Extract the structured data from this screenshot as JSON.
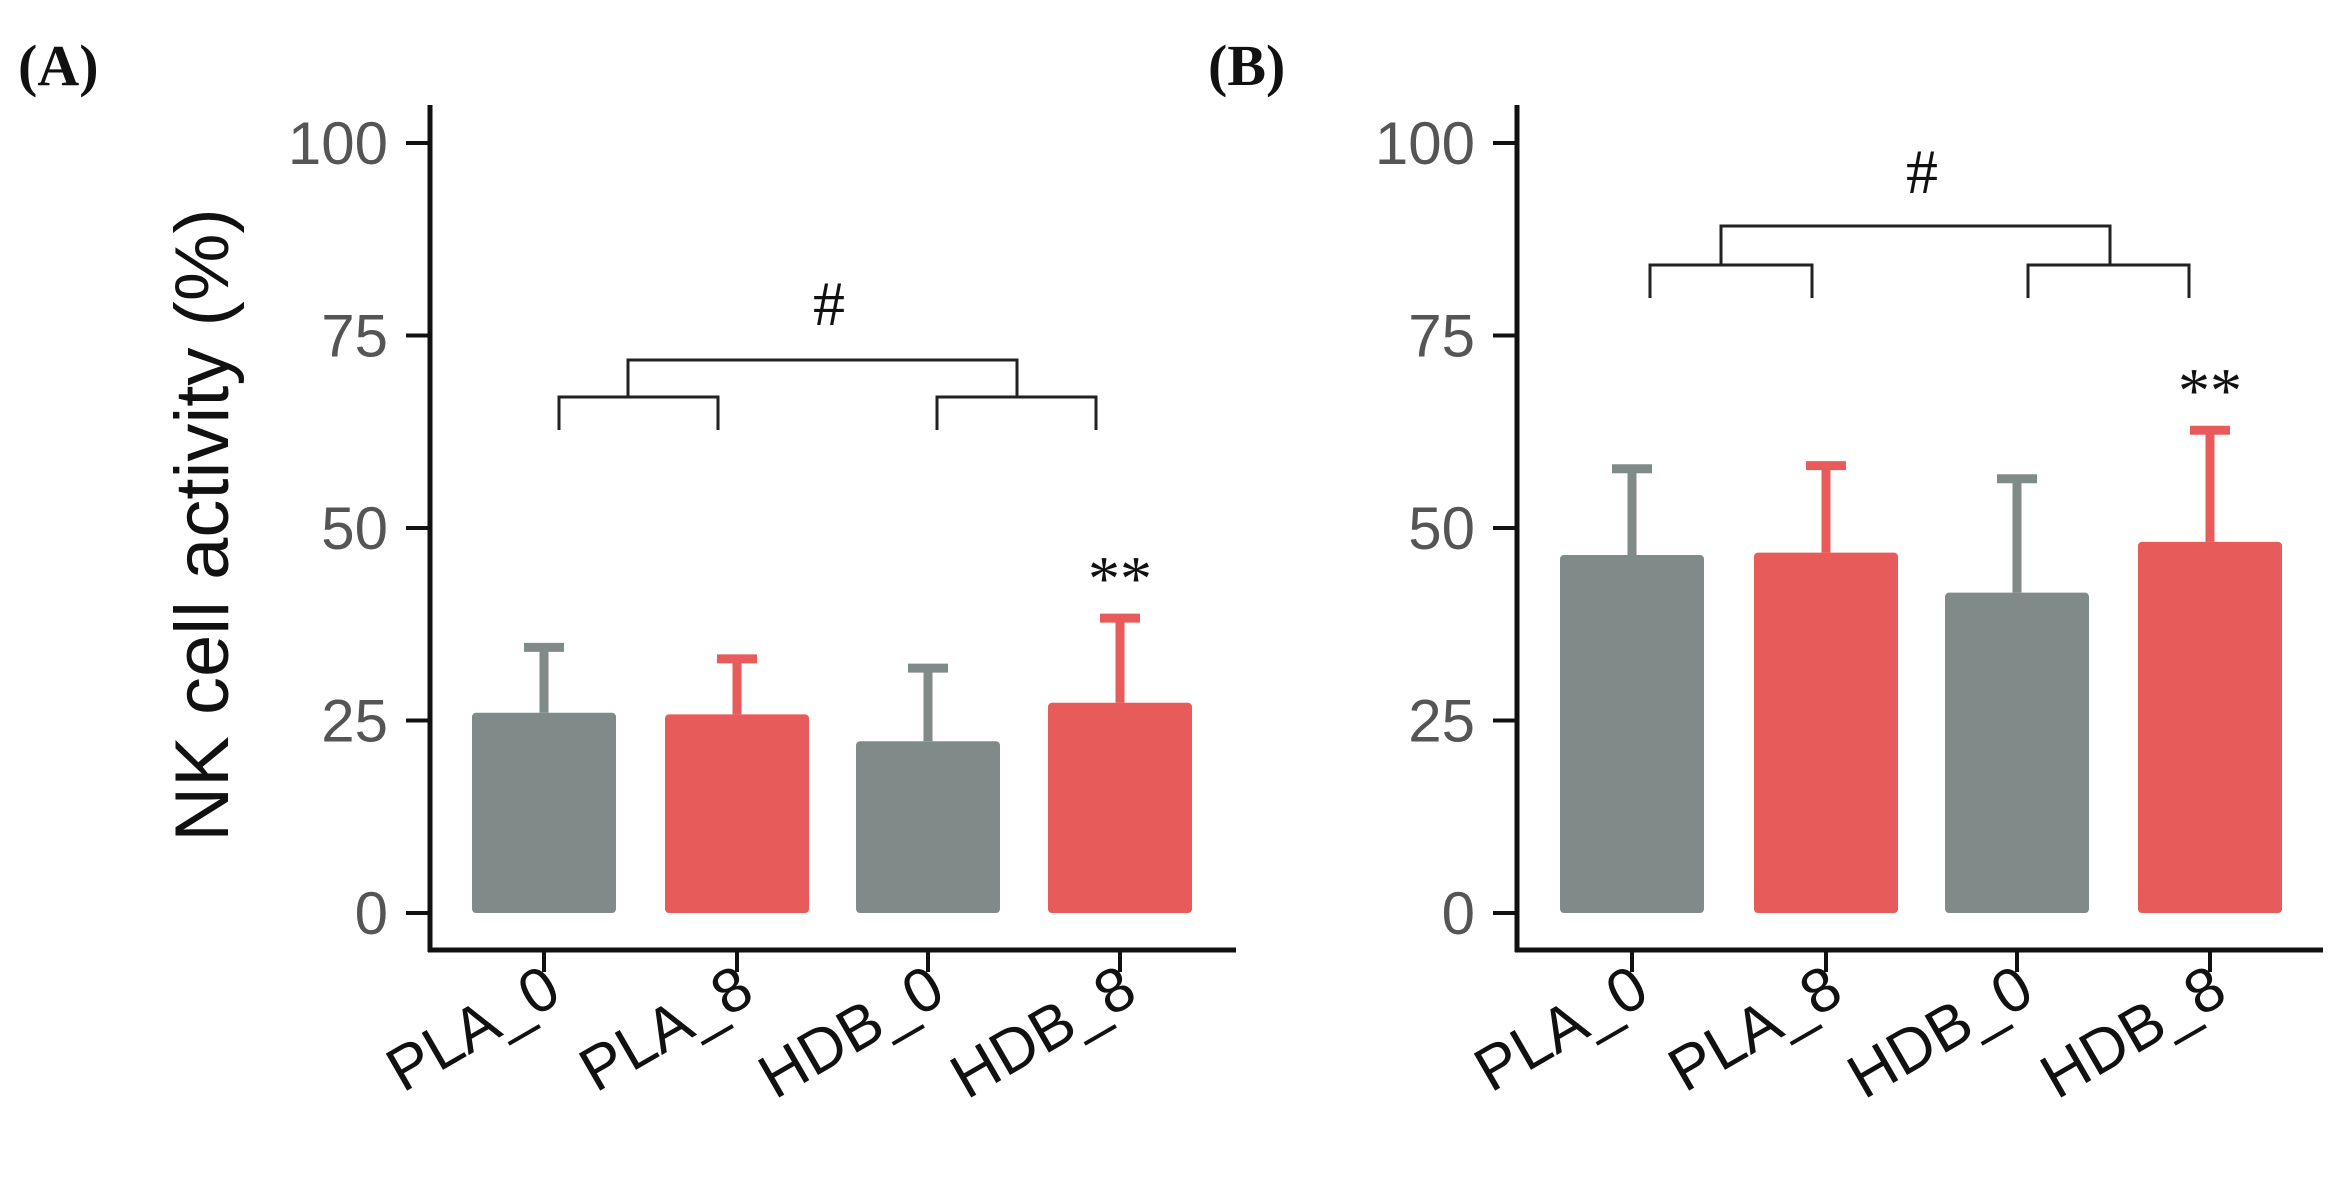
{
  "colors": {
    "PLA": "#808b89",
    "HDB": "#e85b5b",
    "axis": "#111111",
    "tick_text": "#555555"
  },
  "chart_data": [
    {
      "type": "bar",
      "panel": "(A)",
      "ylabel": "NK cell activity (%)",
      "ylim": [
        0,
        100
      ],
      "yticks": [
        0,
        25,
        50,
        75,
        100
      ],
      "categories": [
        "PLA_0",
        "PLA_8",
        "HDB_0",
        "HDB_8"
      ],
      "values": [
        26,
        25.8,
        22.3,
        27.3
      ],
      "errors": [
        8.5,
        7.2,
        9.5,
        11
      ],
      "bar_groups": [
        "PLA",
        "HDB",
        "PLA",
        "HDB"
      ],
      "annotations": {
        "bar_marks": [
          "",
          "",
          "",
          "**"
        ],
        "bracket_label": "#"
      }
    },
    {
      "type": "bar",
      "panel": "(B)",
      "ylabel": "",
      "ylim": [
        0,
        100
      ],
      "yticks": [
        0,
        25,
        50,
        75,
        100
      ],
      "categories": [
        "PLA_0",
        "PLA_8",
        "HDB_0",
        "HDB_8"
      ],
      "values": [
        46.5,
        46.8,
        41.6,
        48.2
      ],
      "errors": [
        11.2,
        11.3,
        14.8,
        14.5
      ],
      "bar_groups": [
        "PLA",
        "HDB",
        "PLA",
        "HDB"
      ],
      "annotations": {
        "bar_marks": [
          "",
          "",
          "",
          "**"
        ],
        "bracket_label": "#"
      }
    }
  ]
}
